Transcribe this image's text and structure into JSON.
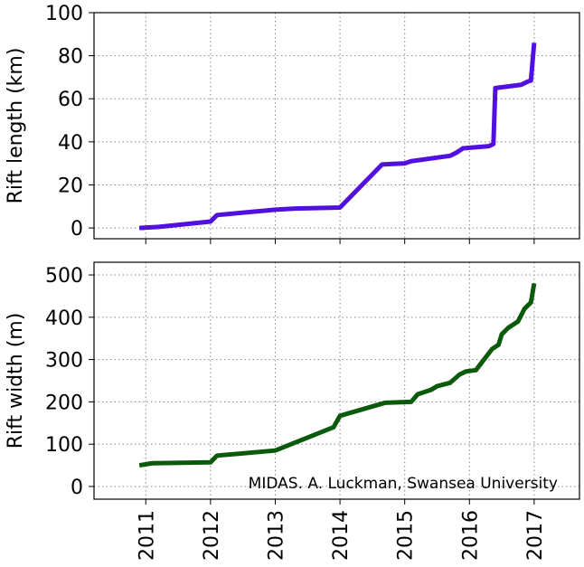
{
  "chart_data": [
    {
      "type": "line",
      "ylabel": "Rift length (km)",
      "x": [
        2010.9,
        2011.2,
        2012.0,
        2012.1,
        2013.0,
        2013.3,
        2014.0,
        2014.65,
        2015.0,
        2015.1,
        2015.7,
        2015.8,
        2015.9,
        2016.3,
        2016.37,
        2016.4,
        2016.8,
        2016.9,
        2016.95,
        2017.0
      ],
      "series": [
        {
          "name": "Rift length",
          "color": "#5210e0",
          "values": [
            0,
            0.5,
            3,
            6,
            8.5,
            9,
            9.5,
            29.5,
            30,
            31,
            33.5,
            35,
            37,
            38,
            39,
            65,
            66.5,
            68,
            68.5,
            86
          ]
        }
      ],
      "xlim": [
        2010.2,
        2017.7
      ],
      "xticks": [
        2011,
        2012,
        2013,
        2014,
        2015,
        2016,
        2017
      ],
      "ylim": [
        -5,
        100
      ],
      "yticks": [
        0,
        20,
        40,
        60,
        80,
        100
      ],
      "grid": true
    },
    {
      "type": "line",
      "ylabel": "Rift width (m)",
      "annotation": "MIDAS. A. Luckman, Swansea University",
      "x": [
        2010.9,
        2011.1,
        2012.0,
        2012.1,
        2013.0,
        2013.9,
        2014.0,
        2014.7,
        2015.1,
        2015.2,
        2015.4,
        2015.5,
        2015.7,
        2015.85,
        2015.95,
        2016.1,
        2016.2,
        2016.35,
        2016.45,
        2016.5,
        2016.6,
        2016.75,
        2016.85,
        2016.95,
        2017.0
      ],
      "series": [
        {
          "name": "Rift width",
          "color": "#0b5a0b",
          "values": [
            50,
            55,
            57,
            73,
            85,
            140,
            167,
            198,
            200,
            218,
            228,
            237,
            245,
            265,
            272,
            275,
            295,
            325,
            335,
            360,
            375,
            390,
            420,
            435,
            480
          ]
        }
      ],
      "xlim": [
        2010.2,
        2017.7
      ],
      "xticks": [
        2011,
        2012,
        2013,
        2014,
        2015,
        2016,
        2017
      ],
      "ylim": [
        -30,
        530
      ],
      "yticks": [
        0,
        100,
        200,
        300,
        400,
        500
      ],
      "grid": true
    }
  ]
}
